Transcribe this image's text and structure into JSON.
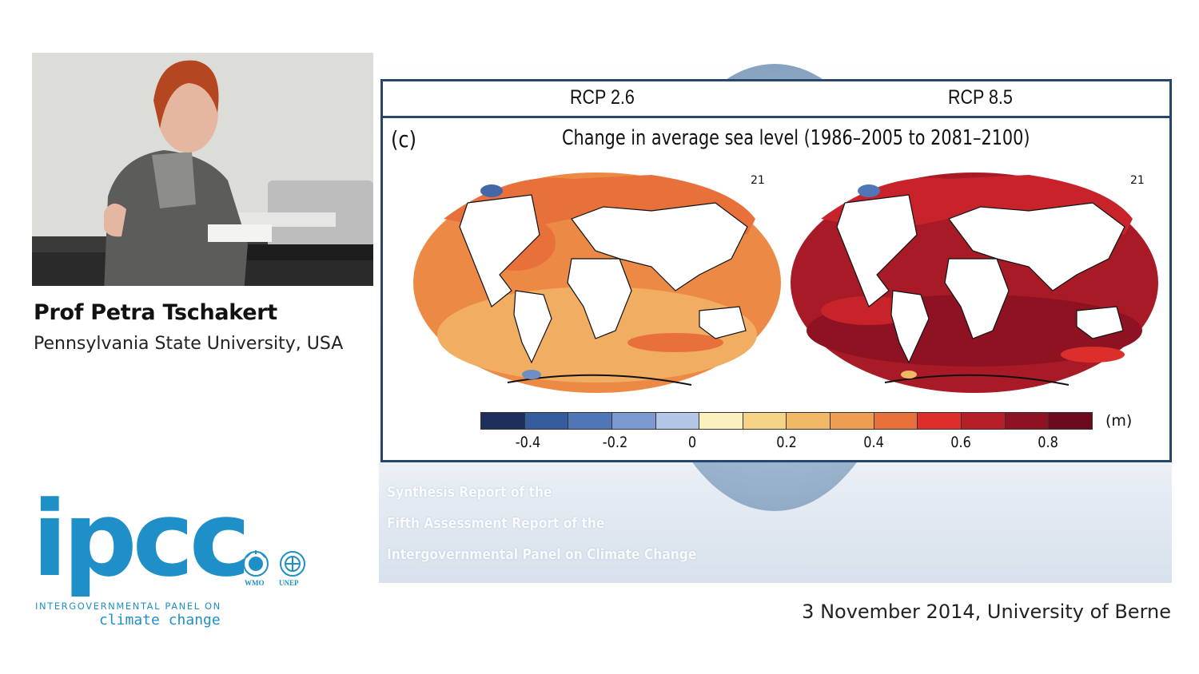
{
  "speaker": {
    "name": "Prof Petra Tschakert",
    "affiliation": "Pennsylvania State University, USA"
  },
  "logos": {
    "ipcc_word": "ipcc",
    "ipcc_line1": "INTERGOVERNMENTAL PANEL ON",
    "ipcc_line2": "climate change",
    "wmo": "WMO",
    "unep": "UNEP",
    "brand_color": "#1f8fc8"
  },
  "figure": {
    "scenario_left": "RCP 2.6",
    "scenario_right": "RCP 8.5",
    "panel_label": "(c)",
    "title": "Change in average sea level (1986–2005 to 2081–2100)",
    "model_count_left": "21",
    "model_count_right": "21",
    "colorbar_ticks": [
      "-0.4",
      "-0.2",
      "0",
      "0.2",
      "0.4",
      "0.6",
      "0.8"
    ],
    "colorbar_unit": "(m)",
    "colorbar_colors": [
      "#1f2f5b",
      "#355d9e",
      "#5176b7",
      "#7c9ad0",
      "#b3c6e6",
      "#fbf1bf",
      "#f5d488",
      "#f1b866",
      "#ee9e4f",
      "#e8713b",
      "#dc2e2b",
      "#b81e27",
      "#8f1222",
      "#6d0b1c"
    ],
    "frame_color": "#27466b"
  },
  "slide_background_text": [
    "Synthesis Report of the",
    "Fifth Assessment Report of the",
    "Intergovernmental Panel on Climate Change"
  ],
  "footer": {
    "event": "3 November 2014, University of Berne"
  }
}
